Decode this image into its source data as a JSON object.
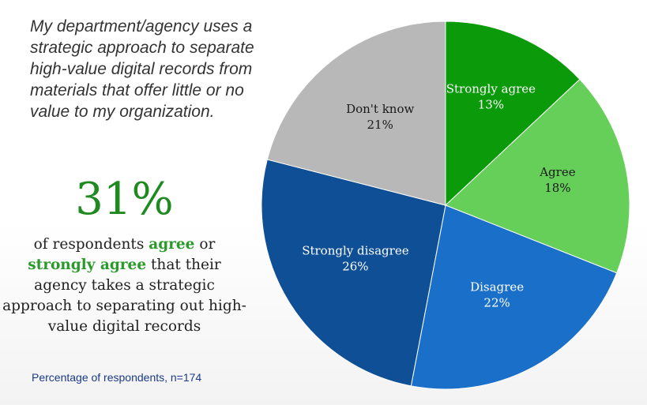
{
  "question": "My department/agency uses a strategic approach to separate high-value digital records from materials that offer little or no value to my organization.",
  "highlight": {
    "stat": "31%",
    "text_1": "of respondents",
    "agree": "agree",
    "text_2": "or",
    "strongly_agree": "strongly agree",
    "text_3": "that their agency takes a strategic approach to separating out high-value digital records"
  },
  "footnote": "Percentage of respondents, n=174",
  "chart_data": {
    "type": "pie",
    "title": "My department/agency uses a strategic approach to separate high-value digital records from materials that offer little or no value to my organization.",
    "slices": [
      {
        "label": "Strongly agree",
        "value": 13,
        "display": "13%",
        "color": "#0a9a0a",
        "text_color": "#ffffff"
      },
      {
        "label": "Agree",
        "value": 18,
        "display": "18%",
        "color": "#66cf5a",
        "text_color": "#1a1a1a"
      },
      {
        "label": "Disagree",
        "value": 22,
        "display": "22%",
        "color": "#1a6fc9",
        "text_color": "#ffffff"
      },
      {
        "label": "Strongly disagree",
        "value": 26,
        "display": "26%",
        "color": "#0f4f96",
        "text_color": "#ffffff"
      },
      {
        "label": "Don't know",
        "value": 21,
        "display": "21%",
        "color": "#b8b8b8",
        "text_color": "#1a1a1a"
      }
    ]
  }
}
